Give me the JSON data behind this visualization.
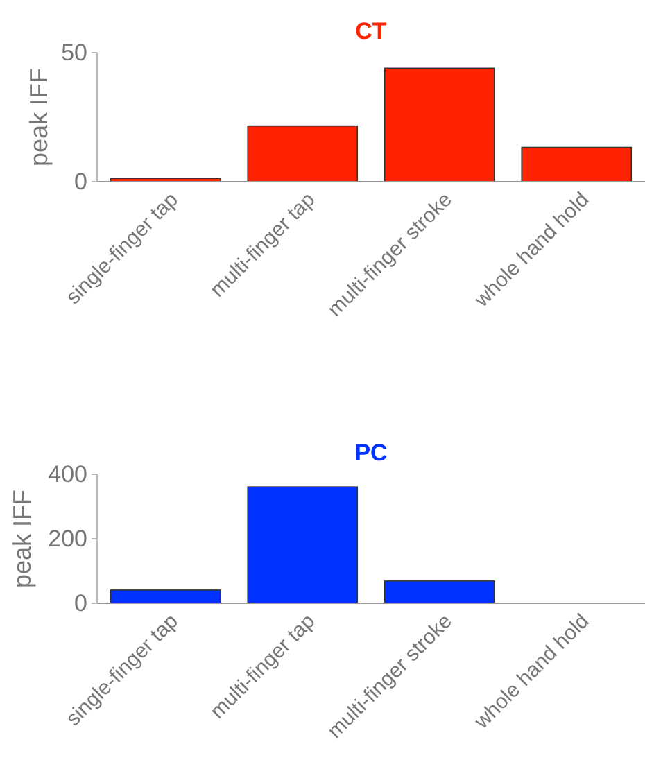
{
  "chart_data": [
    {
      "type": "bar",
      "title": "CT",
      "ylabel": "peak IFF",
      "categories": [
        "single-finger tap",
        "multi-finger tap",
        "multi-finger stroke",
        "whole hand hold"
      ],
      "series": [
        {
          "color": "#ff2200",
          "values": [
            1.3,
            21.6,
            44,
            13.3
          ]
        }
      ],
      "ylim": [
        0,
        50
      ],
      "yticks": [
        0,
        50
      ]
    },
    {
      "type": "bar",
      "title": "PC",
      "ylabel": "peak IFF",
      "categories": [
        "single-finger tap",
        "multi-finger tap",
        "multi-finger stroke",
        "whole hand hold"
      ],
      "series": [
        {
          "color": "#0033ff",
          "values": [
            41,
            361,
            69,
            0
          ]
        }
      ],
      "ylim": [
        0,
        400
      ],
      "yticks": [
        0,
        200,
        400
      ]
    }
  ]
}
